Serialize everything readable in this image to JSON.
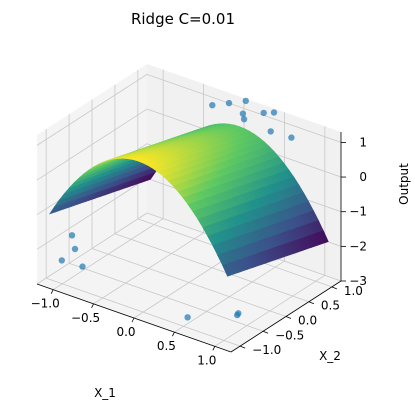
{
  "chart_data": {
    "type": "surface3d",
    "title": "Ridge C=0.01",
    "xlabel": "X_1",
    "ylabel": "X_2",
    "zlabel": "Output",
    "xlim": [
      -1.2,
      1.2
    ],
    "ylim": [
      -1.2,
      1.2
    ],
    "zlim": [
      -3,
      1.3
    ],
    "xticks": [
      "−1.0",
      "−0.5",
      "0.0",
      "0.5",
      "1.0"
    ],
    "xtick_values": [
      -1.0,
      -0.5,
      0.0,
      0.5,
      1.0
    ],
    "yticks": [
      "−1.0",
      "−0.5",
      "0.0",
      "0.5",
      "1.0"
    ],
    "ytick_values": [
      -1.0,
      -0.5,
      0.0,
      0.5,
      1.0
    ],
    "zticks": [
      "−3",
      "−2",
      "−1",
      "0",
      "1"
    ],
    "ztick_values": [
      -3,
      -2,
      -1,
      0,
      1
    ],
    "surface_formula": "z = 1 - 2*x^2 - 0.4*y",
    "colormap": [
      "#440154",
      "#3b528b",
      "#21918c",
      "#5ec962",
      "#fde725"
    ],
    "points_color": "#1f77b4",
    "grid": true,
    "points": [
      {
        "x": -0.95,
        "y": -1.1,
        "z": -2.2
      },
      {
        "x": -0.9,
        "y": -0.9,
        "z": -2.0
      },
      {
        "x": -0.75,
        "y": -1.0,
        "z": -2.3
      },
      {
        "x": -1.05,
        "y": -0.7,
        "z": -1.9
      },
      {
        "x": 0.55,
        "y": -1.0,
        "z": -2.7
      },
      {
        "x": 0.95,
        "y": -0.6,
        "z": -2.6
      },
      {
        "x": 1.05,
        "y": -0.8,
        "z": -2.4
      },
      {
        "x": 0.3,
        "y": 1.1,
        "z": 1.2
      },
      {
        "x": 0.1,
        "y": 1.0,
        "z": 1.1
      },
      {
        "x": -0.1,
        "y": 1.05,
        "z": 1.2
      },
      {
        "x": 0.5,
        "y": 0.9,
        "z": 1.0
      },
      {
        "x": 0.4,
        "y": 1.15,
        "z": 1.25
      },
      {
        "x": 0.2,
        "y": 0.85,
        "z": 1.15
      },
      {
        "x": -0.25,
        "y": 0.95,
        "z": 1.1
      },
      {
        "x": 0.7,
        "y": 1.0,
        "z": 0.9
      },
      {
        "x": 0.05,
        "y": 1.15,
        "z": 1.3
      }
    ]
  }
}
